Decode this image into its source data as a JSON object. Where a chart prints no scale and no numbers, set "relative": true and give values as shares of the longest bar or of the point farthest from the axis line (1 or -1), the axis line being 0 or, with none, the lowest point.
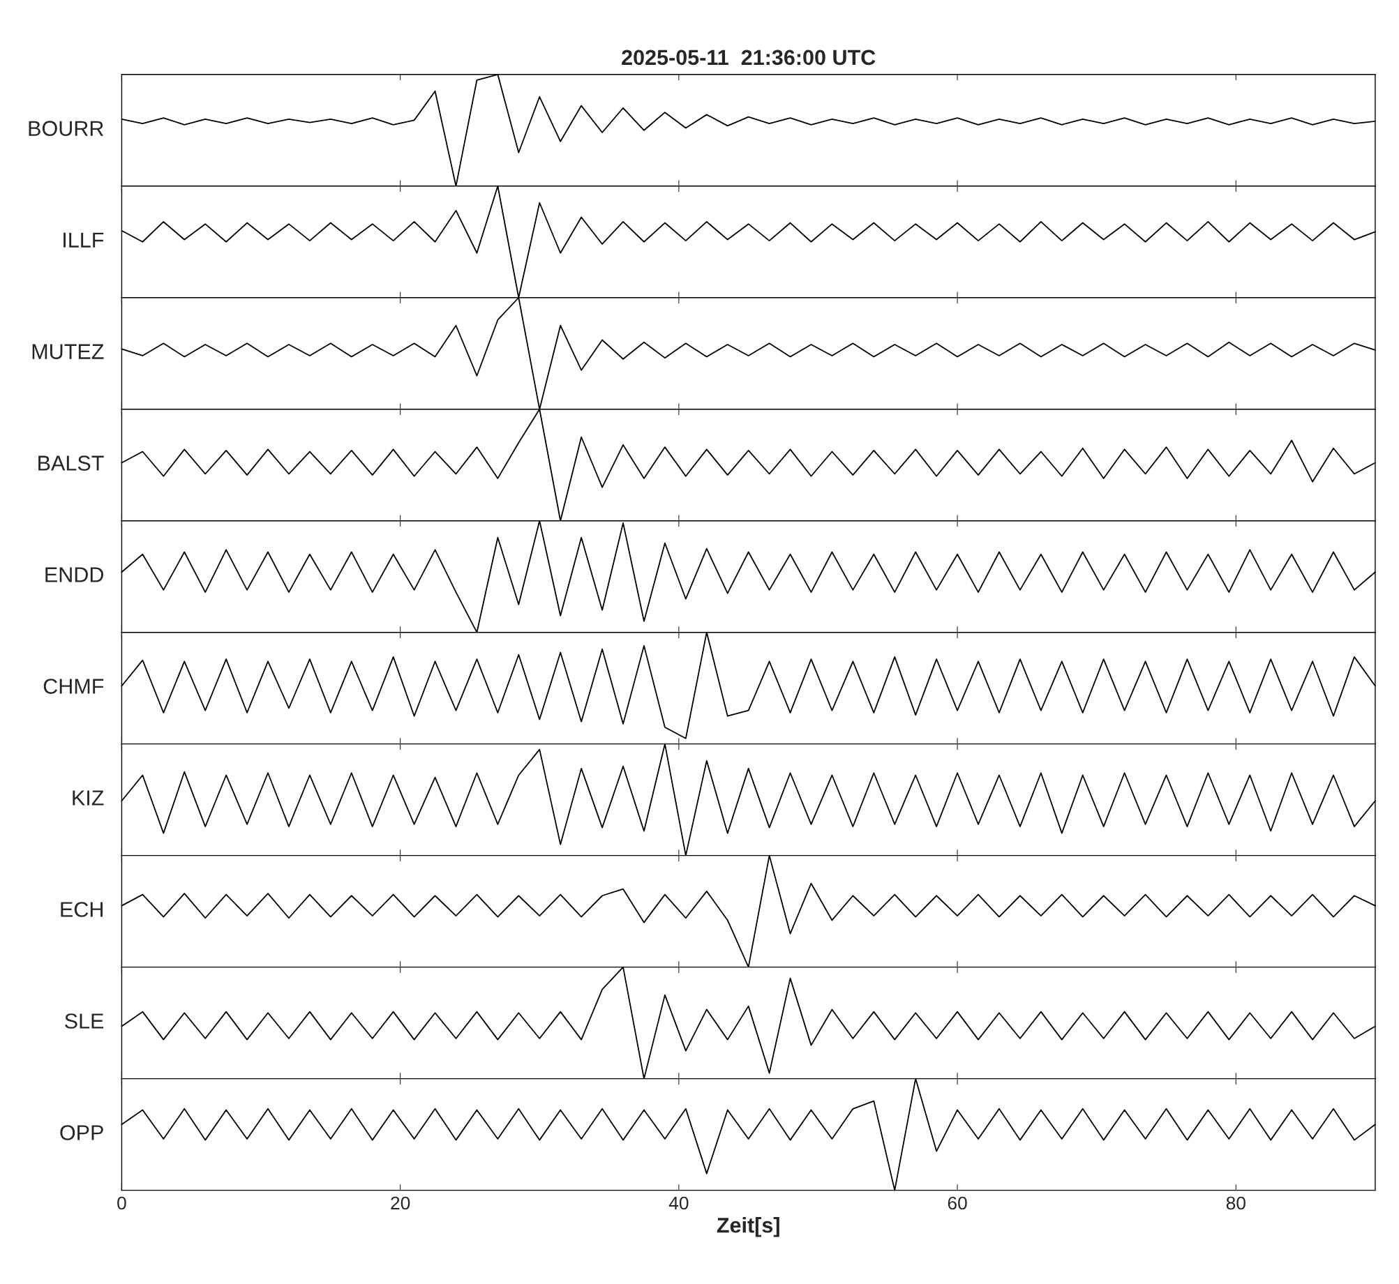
{
  "chart_data": [
    {
      "type": "line",
      "title": "2025-05-11  21:36:00 UTC",
      "ylabel": "BOURR",
      "relative": true,
      "color": "#000000",
      "xlim": [
        0,
        90
      ],
      "xticks": [
        0,
        20,
        40,
        60,
        80
      ],
      "tick_labels": false,
      "x": [
        0,
        1.5,
        3,
        4.5,
        6,
        7.5,
        9,
        10.5,
        12,
        13.5,
        15,
        16.5,
        18,
        19.5,
        21,
        22.5,
        24,
        25.5,
        27,
        28.5,
        30,
        31.5,
        33,
        34.5,
        36,
        37.5,
        39,
        40.5,
        42,
        43.5,
        45,
        46.5,
        48,
        49.5,
        51,
        52.5,
        54,
        55.5,
        57,
        58.5,
        60,
        61.5,
        63,
        64.5,
        66,
        67.5,
        69,
        70.5,
        72,
        73.5,
        75,
        76.5,
        78,
        79.5,
        81,
        82.5,
        84,
        85.5,
        87,
        88.5,
        90
      ],
      "values": [
        0.6,
        0.56,
        0.61,
        0.55,
        0.6,
        0.56,
        0.61,
        0.56,
        0.6,
        0.57,
        0.6,
        0.56,
        0.61,
        0.55,
        0.59,
        0.85,
        0.0,
        0.95,
        1.0,
        0.3,
        0.8,
        0.4,
        0.72,
        0.48,
        0.7,
        0.5,
        0.66,
        0.52,
        0.64,
        0.54,
        0.62,
        0.56,
        0.61,
        0.55,
        0.6,
        0.56,
        0.61,
        0.55,
        0.6,
        0.56,
        0.61,
        0.55,
        0.6,
        0.56,
        0.61,
        0.55,
        0.6,
        0.56,
        0.61,
        0.55,
        0.6,
        0.56,
        0.61,
        0.55,
        0.6,
        0.56,
        0.61,
        0.55,
        0.6,
        0.56,
        0.58
      ]
    },
    {
      "type": "line",
      "ylabel": "ILLF",
      "relative": true,
      "color": "#000000",
      "xlim": [
        0,
        90
      ],
      "xticks": [
        0,
        20,
        40,
        60,
        80
      ],
      "tick_labels": false,
      "x": [
        0,
        1.5,
        3,
        4.5,
        6,
        7.5,
        9,
        10.5,
        12,
        13.5,
        15,
        16.5,
        18,
        19.5,
        21,
        22.5,
        24,
        25.5,
        27,
        28.5,
        30,
        31.5,
        33,
        34.5,
        36,
        37.5,
        39,
        40.5,
        42,
        43.5,
        45,
        46.5,
        48,
        49.5,
        51,
        52.5,
        54,
        55.5,
        57,
        58.5,
        60,
        61.5,
        63,
        64.5,
        66,
        67.5,
        69,
        70.5,
        72,
        73.5,
        75,
        76.5,
        78,
        79.5,
        81,
        82.5,
        84,
        85.5,
        87,
        88.5,
        90
      ],
      "values": [
        0.6,
        0.5,
        0.68,
        0.52,
        0.66,
        0.5,
        0.67,
        0.52,
        0.66,
        0.51,
        0.67,
        0.52,
        0.66,
        0.51,
        0.68,
        0.5,
        0.78,
        0.4,
        1.0,
        0.0,
        0.85,
        0.4,
        0.72,
        0.48,
        0.68,
        0.5,
        0.67,
        0.51,
        0.68,
        0.52,
        0.66,
        0.51,
        0.67,
        0.5,
        0.66,
        0.52,
        0.67,
        0.51,
        0.66,
        0.52,
        0.67,
        0.51,
        0.66,
        0.5,
        0.68,
        0.51,
        0.67,
        0.52,
        0.66,
        0.5,
        0.67,
        0.51,
        0.68,
        0.5,
        0.67,
        0.52,
        0.66,
        0.51,
        0.67,
        0.52,
        0.59
      ]
    },
    {
      "type": "line",
      "ylabel": "MUTEZ",
      "relative": true,
      "color": "#000000",
      "xlim": [
        0,
        90
      ],
      "xticks": [
        0,
        20,
        40,
        60,
        80
      ],
      "tick_labels": false,
      "x": [
        0,
        1.5,
        3,
        4.5,
        6,
        7.5,
        9,
        10.5,
        12,
        13.5,
        15,
        16.5,
        18,
        19.5,
        21,
        22.5,
        24,
        25.5,
        27,
        28.5,
        30,
        31.5,
        33,
        34.5,
        36,
        37.5,
        39,
        40.5,
        42,
        43.5,
        45,
        46.5,
        48,
        49.5,
        51,
        52.5,
        54,
        55.5,
        57,
        58.5,
        60,
        61.5,
        63,
        64.5,
        66,
        67.5,
        69,
        70.5,
        72,
        73.5,
        75,
        76.5,
        78,
        79.5,
        81,
        82.5,
        84,
        85.5,
        87,
        88.5,
        90
      ],
      "values": [
        0.54,
        0.48,
        0.59,
        0.47,
        0.58,
        0.48,
        0.59,
        0.47,
        0.58,
        0.48,
        0.59,
        0.47,
        0.58,
        0.48,
        0.59,
        0.47,
        0.75,
        0.3,
        0.8,
        1.0,
        0.0,
        0.75,
        0.35,
        0.62,
        0.45,
        0.6,
        0.46,
        0.59,
        0.47,
        0.58,
        0.48,
        0.59,
        0.47,
        0.58,
        0.48,
        0.59,
        0.47,
        0.58,
        0.48,
        0.59,
        0.47,
        0.58,
        0.48,
        0.59,
        0.47,
        0.58,
        0.48,
        0.59,
        0.47,
        0.58,
        0.48,
        0.59,
        0.47,
        0.6,
        0.48,
        0.59,
        0.47,
        0.58,
        0.48,
        0.59,
        0.53
      ]
    },
    {
      "type": "line",
      "ylabel": "BALST",
      "relative": true,
      "color": "#000000",
      "xlim": [
        0,
        90
      ],
      "xticks": [
        0,
        20,
        40,
        60,
        80
      ],
      "tick_labels": false,
      "x": [
        0,
        1.5,
        3,
        4.5,
        6,
        7.5,
        9,
        10.5,
        12,
        13.5,
        15,
        16.5,
        18,
        19.5,
        21,
        22.5,
        24,
        25.5,
        27,
        28.5,
        30,
        31.5,
        33,
        34.5,
        36,
        37.5,
        39,
        40.5,
        42,
        43.5,
        45,
        46.5,
        48,
        49.5,
        51,
        52.5,
        54,
        55.5,
        57,
        58.5,
        60,
        61.5,
        63,
        64.5,
        66,
        67.5,
        69,
        70.5,
        72,
        73.5,
        75,
        76.5,
        78,
        79.5,
        81,
        82.5,
        84,
        85.5,
        87,
        88.5,
        90
      ],
      "values": [
        0.52,
        0.62,
        0.4,
        0.64,
        0.42,
        0.63,
        0.41,
        0.64,
        0.42,
        0.62,
        0.42,
        0.63,
        0.41,
        0.64,
        0.4,
        0.62,
        0.42,
        0.66,
        0.38,
        0.7,
        1.0,
        0.0,
        0.75,
        0.3,
        0.68,
        0.38,
        0.66,
        0.4,
        0.64,
        0.41,
        0.63,
        0.42,
        0.64,
        0.4,
        0.62,
        0.41,
        0.63,
        0.42,
        0.64,
        0.4,
        0.63,
        0.41,
        0.64,
        0.42,
        0.62,
        0.4,
        0.65,
        0.38,
        0.64,
        0.42,
        0.66,
        0.38,
        0.64,
        0.4,
        0.63,
        0.42,
        0.72,
        0.35,
        0.65,
        0.42,
        0.52
      ]
    },
    {
      "type": "line",
      "ylabel": "ENDD",
      "relative": true,
      "color": "#000000",
      "xlim": [
        0,
        90
      ],
      "xticks": [
        0,
        20,
        40,
        60,
        80
      ],
      "tick_labels": false,
      "x": [
        0,
        1.5,
        3,
        4.5,
        6,
        7.5,
        9,
        10.5,
        12,
        13.5,
        15,
        16.5,
        18,
        19.5,
        21,
        22.5,
        24,
        25.5,
        27,
        28.5,
        30,
        31.5,
        33,
        34.5,
        36,
        37.5,
        39,
        40.5,
        42,
        43.5,
        45,
        46.5,
        48,
        49.5,
        51,
        52.5,
        54,
        55.5,
        57,
        58.5,
        60,
        61.5,
        63,
        64.5,
        66,
        67.5,
        69,
        70.5,
        72,
        73.5,
        75,
        76.5,
        78,
        79.5,
        81,
        82.5,
        84,
        85.5,
        87,
        88.5,
        90
      ],
      "values": [
        0.54,
        0.7,
        0.38,
        0.72,
        0.36,
        0.74,
        0.38,
        0.72,
        0.36,
        0.7,
        0.38,
        0.72,
        0.36,
        0.7,
        0.38,
        0.74,
        0.36,
        0.0,
        0.85,
        0.25,
        1.0,
        0.15,
        0.85,
        0.2,
        0.98,
        0.1,
        0.8,
        0.3,
        0.75,
        0.35,
        0.72,
        0.38,
        0.7,
        0.36,
        0.72,
        0.38,
        0.7,
        0.36,
        0.72,
        0.38,
        0.7,
        0.36,
        0.72,
        0.38,
        0.7,
        0.36,
        0.72,
        0.38,
        0.7,
        0.36,
        0.72,
        0.38,
        0.7,
        0.36,
        0.74,
        0.38,
        0.7,
        0.36,
        0.72,
        0.38,
        0.54
      ]
    },
    {
      "type": "line",
      "ylabel": "CHMF",
      "relative": true,
      "color": "#000000",
      "xlim": [
        0,
        90
      ],
      "xticks": [
        0,
        20,
        40,
        60,
        80
      ],
      "tick_labels": false,
      "x": [
        0,
        1.5,
        3,
        4.5,
        6,
        7.5,
        9,
        10.5,
        12,
        13.5,
        15,
        16.5,
        18,
        19.5,
        21,
        22.5,
        24,
        25.5,
        27,
        28.5,
        30,
        31.5,
        33,
        34.5,
        36,
        37.5,
        39,
        40.5,
        42,
        43.5,
        45,
        46.5,
        48,
        49.5,
        51,
        52.5,
        54,
        55.5,
        57,
        58.5,
        60,
        61.5,
        63,
        64.5,
        66,
        67.5,
        69,
        70.5,
        72,
        73.5,
        75,
        76.5,
        78,
        79.5,
        81,
        82.5,
        84,
        85.5,
        87,
        88.5,
        90
      ],
      "values": [
        0.52,
        0.75,
        0.28,
        0.74,
        0.3,
        0.76,
        0.28,
        0.74,
        0.32,
        0.76,
        0.28,
        0.74,
        0.3,
        0.78,
        0.25,
        0.74,
        0.3,
        0.76,
        0.28,
        0.8,
        0.22,
        0.82,
        0.2,
        0.85,
        0.18,
        0.88,
        0.15,
        0.05,
        1.0,
        0.25,
        0.3,
        0.74,
        0.28,
        0.76,
        0.3,
        0.74,
        0.28,
        0.78,
        0.26,
        0.76,
        0.3,
        0.74,
        0.28,
        0.76,
        0.3,
        0.74,
        0.28,
        0.76,
        0.3,
        0.74,
        0.28,
        0.76,
        0.3,
        0.74,
        0.28,
        0.76,
        0.3,
        0.74,
        0.25,
        0.78,
        0.52
      ]
    },
    {
      "type": "line",
      "ylabel": "KIZ",
      "relative": true,
      "color": "#000000",
      "xlim": [
        0,
        90
      ],
      "xticks": [
        0,
        20,
        40,
        60,
        80
      ],
      "tick_labels": false,
      "x": [
        0,
        1.5,
        3,
        4.5,
        6,
        7.5,
        9,
        10.5,
        12,
        13.5,
        15,
        16.5,
        18,
        19.5,
        21,
        22.5,
        24,
        25.5,
        27,
        28.5,
        30,
        31.5,
        33,
        34.5,
        36,
        37.5,
        39,
        40.5,
        42,
        43.5,
        45,
        46.5,
        48,
        49.5,
        51,
        52.5,
        54,
        55.5,
        57,
        58.5,
        60,
        61.5,
        63,
        64.5,
        66,
        67.5,
        69,
        70.5,
        72,
        73.5,
        75,
        76.5,
        78,
        79.5,
        81,
        82.5,
        84,
        85.5,
        87,
        88.5,
        90
      ],
      "values": [
        0.49,
        0.72,
        0.2,
        0.75,
        0.26,
        0.72,
        0.28,
        0.74,
        0.26,
        0.72,
        0.28,
        0.74,
        0.26,
        0.72,
        0.28,
        0.7,
        0.26,
        0.74,
        0.28,
        0.72,
        0.95,
        0.1,
        0.78,
        0.25,
        0.8,
        0.22,
        1.0,
        0.0,
        0.85,
        0.2,
        0.78,
        0.25,
        0.74,
        0.28,
        0.72,
        0.26,
        0.74,
        0.28,
        0.72,
        0.26,
        0.74,
        0.28,
        0.72,
        0.26,
        0.74,
        0.2,
        0.72,
        0.26,
        0.74,
        0.28,
        0.72,
        0.26,
        0.74,
        0.28,
        0.72,
        0.22,
        0.74,
        0.28,
        0.72,
        0.26,
        0.49
      ]
    },
    {
      "type": "line",
      "ylabel": "ECH",
      "relative": true,
      "color": "#000000",
      "xlim": [
        0,
        90
      ],
      "xticks": [
        0,
        20,
        40,
        60,
        80
      ],
      "tick_labels": false,
      "x": [
        0,
        1.5,
        3,
        4.5,
        6,
        7.5,
        9,
        10.5,
        12,
        13.5,
        15,
        16.5,
        18,
        19.5,
        21,
        22.5,
        24,
        25.5,
        27,
        28.5,
        30,
        31.5,
        33,
        34.5,
        36,
        37.5,
        39,
        40.5,
        42,
        43.5,
        45,
        46.5,
        48,
        49.5,
        51,
        52.5,
        54,
        55.5,
        57,
        58.5,
        60,
        61.5,
        63,
        64.5,
        66,
        67.5,
        69,
        70.5,
        72,
        73.5,
        75,
        76.5,
        78,
        79.5,
        81,
        82.5,
        84,
        85.5,
        87,
        88.5,
        90
      ],
      "values": [
        0.55,
        0.65,
        0.45,
        0.66,
        0.44,
        0.65,
        0.46,
        0.66,
        0.44,
        0.65,
        0.45,
        0.64,
        0.46,
        0.65,
        0.45,
        0.64,
        0.46,
        0.65,
        0.45,
        0.64,
        0.46,
        0.65,
        0.45,
        0.64,
        0.7,
        0.4,
        0.65,
        0.44,
        0.68,
        0.42,
        0.0,
        1.0,
        0.3,
        0.75,
        0.42,
        0.64,
        0.46,
        0.65,
        0.45,
        0.64,
        0.46,
        0.65,
        0.45,
        0.64,
        0.46,
        0.65,
        0.45,
        0.64,
        0.46,
        0.65,
        0.45,
        0.64,
        0.46,
        0.65,
        0.45,
        0.64,
        0.46,
        0.65,
        0.45,
        0.64,
        0.55
      ]
    },
    {
      "type": "line",
      "ylabel": "SLE",
      "relative": true,
      "color": "#000000",
      "xlim": [
        0,
        90
      ],
      "xticks": [
        0,
        20,
        40,
        60,
        80
      ],
      "tick_labels": false,
      "x": [
        0,
        1.5,
        3,
        4.5,
        6,
        7.5,
        9,
        10.5,
        12,
        13.5,
        15,
        16.5,
        18,
        19.5,
        21,
        22.5,
        24,
        25.5,
        27,
        28.5,
        30,
        31.5,
        33,
        34.5,
        36,
        37.5,
        39,
        40.5,
        42,
        43.5,
        45,
        46.5,
        48,
        49.5,
        51,
        52.5,
        54,
        55.5,
        57,
        58.5,
        60,
        61.5,
        63,
        64.5,
        66,
        67.5,
        69,
        70.5,
        72,
        73.5,
        75,
        76.5,
        78,
        79.5,
        81,
        82.5,
        84,
        85.5,
        87,
        88.5,
        90
      ],
      "values": [
        0.47,
        0.6,
        0.35,
        0.59,
        0.36,
        0.6,
        0.35,
        0.59,
        0.36,
        0.6,
        0.35,
        0.59,
        0.36,
        0.6,
        0.35,
        0.59,
        0.36,
        0.6,
        0.35,
        0.59,
        0.36,
        0.6,
        0.35,
        0.8,
        1.0,
        0.0,
        0.75,
        0.25,
        0.62,
        0.35,
        0.65,
        0.05,
        0.9,
        0.3,
        0.62,
        0.36,
        0.6,
        0.35,
        0.59,
        0.36,
        0.6,
        0.35,
        0.59,
        0.36,
        0.6,
        0.35,
        0.59,
        0.36,
        0.6,
        0.35,
        0.59,
        0.36,
        0.6,
        0.35,
        0.59,
        0.36,
        0.6,
        0.35,
        0.59,
        0.36,
        0.47
      ]
    },
    {
      "type": "line",
      "ylabel": "OPP",
      "xlabel": "Zeit[s]",
      "relative": true,
      "color": "#000000",
      "xlim": [
        0,
        90
      ],
      "xticks": [
        0,
        20,
        40,
        60,
        80
      ],
      "tick_labels": "x",
      "x": [
        0,
        1.5,
        3,
        4.5,
        6,
        7.5,
        9,
        10.5,
        12,
        13.5,
        15,
        16.5,
        18,
        19.5,
        21,
        22.5,
        24,
        25.5,
        27,
        28.5,
        30,
        31.5,
        33,
        34.5,
        36,
        37.5,
        39,
        40.5,
        42,
        43.5,
        45,
        46.5,
        48,
        49.5,
        51,
        52.5,
        54,
        55.5,
        57,
        58.5,
        60,
        61.5,
        63,
        64.5,
        66,
        67.5,
        69,
        70.5,
        72,
        73.5,
        75,
        76.5,
        78,
        79.5,
        81,
        82.5,
        84,
        85.5,
        87,
        88.5,
        90
      ],
      "values": [
        0.59,
        0.72,
        0.46,
        0.73,
        0.45,
        0.72,
        0.46,
        0.73,
        0.45,
        0.72,
        0.46,
        0.73,
        0.45,
        0.72,
        0.46,
        0.73,
        0.45,
        0.72,
        0.46,
        0.73,
        0.45,
        0.72,
        0.46,
        0.73,
        0.45,
        0.72,
        0.46,
        0.73,
        0.15,
        0.72,
        0.46,
        0.73,
        0.45,
        0.72,
        0.46,
        0.73,
        0.8,
        0.0,
        1.0,
        0.35,
        0.72,
        0.46,
        0.73,
        0.45,
        0.72,
        0.46,
        0.73,
        0.45,
        0.72,
        0.46,
        0.73,
        0.45,
        0.72,
        0.46,
        0.73,
        0.45,
        0.72,
        0.46,
        0.73,
        0.45,
        0.59
      ]
    }
  ]
}
